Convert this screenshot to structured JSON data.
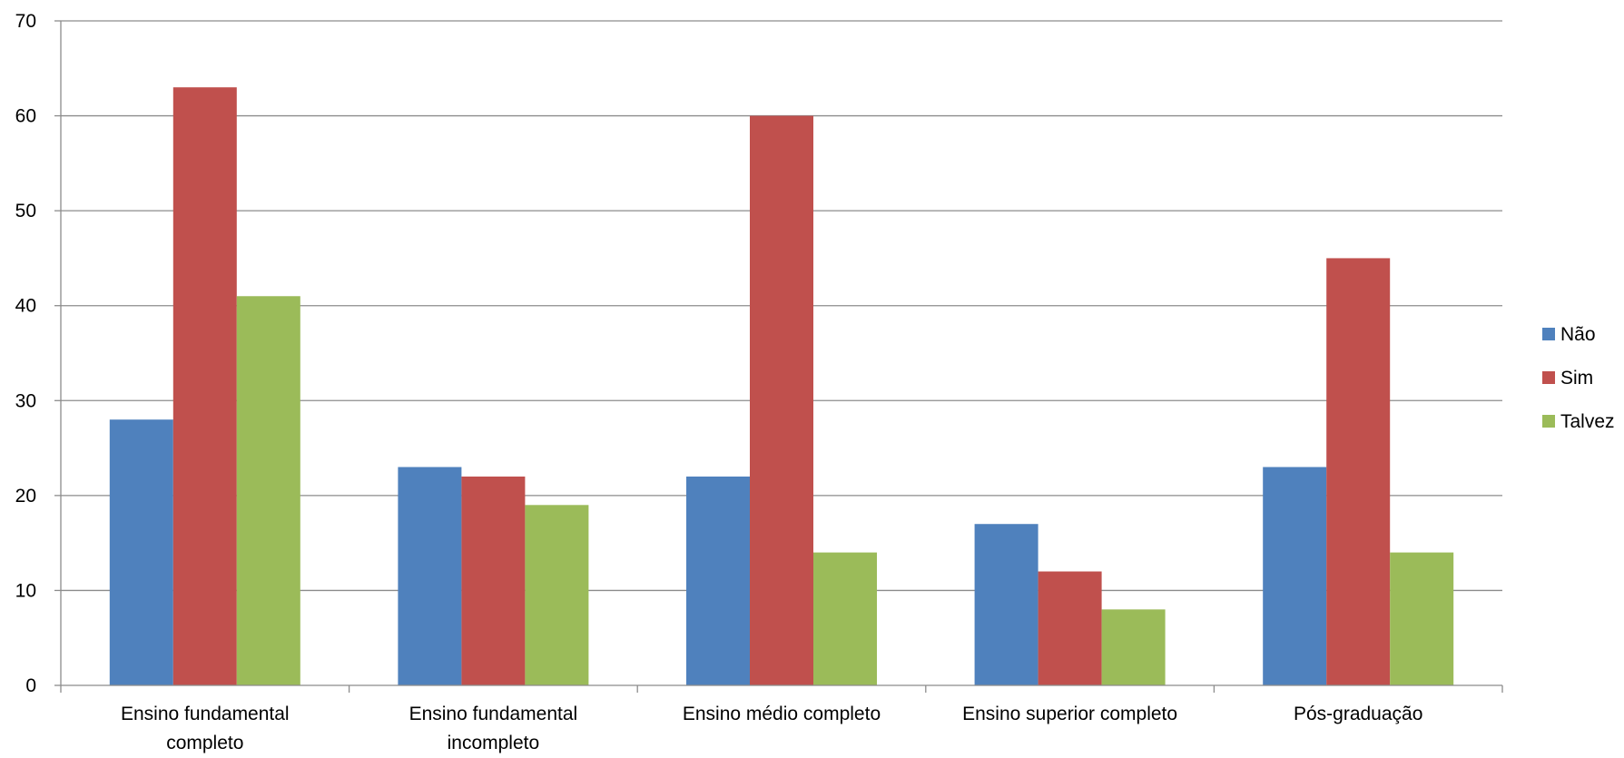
{
  "chart_data": {
    "type": "bar",
    "categories": [
      [
        "Ensino fundamental",
        "completo"
      ],
      [
        "Ensino fundamental",
        "incompleto"
      ],
      [
        "Ensino médio completo"
      ],
      [
        "Ensino superior completo"
      ],
      [
        "Pós-graduação"
      ]
    ],
    "series": [
      {
        "name": "Não",
        "color": "#4F81BD",
        "values": [
          28,
          23,
          22,
          17,
          23
        ]
      },
      {
        "name": "Sim",
        "color": "#C0504D",
        "values": [
          63,
          22,
          60,
          12,
          45
        ]
      },
      {
        "name": "Talvez",
        "color": "#9BBB59",
        "values": [
          41,
          19,
          14,
          8,
          14
        ]
      }
    ],
    "ylim": [
      0,
      70
    ],
    "yticks": [
      0,
      10,
      20,
      30,
      40,
      50,
      60,
      70
    ],
    "grid": true,
    "legend_position": "right",
    "title": "",
    "xlabel": "",
    "ylabel": ""
  }
}
